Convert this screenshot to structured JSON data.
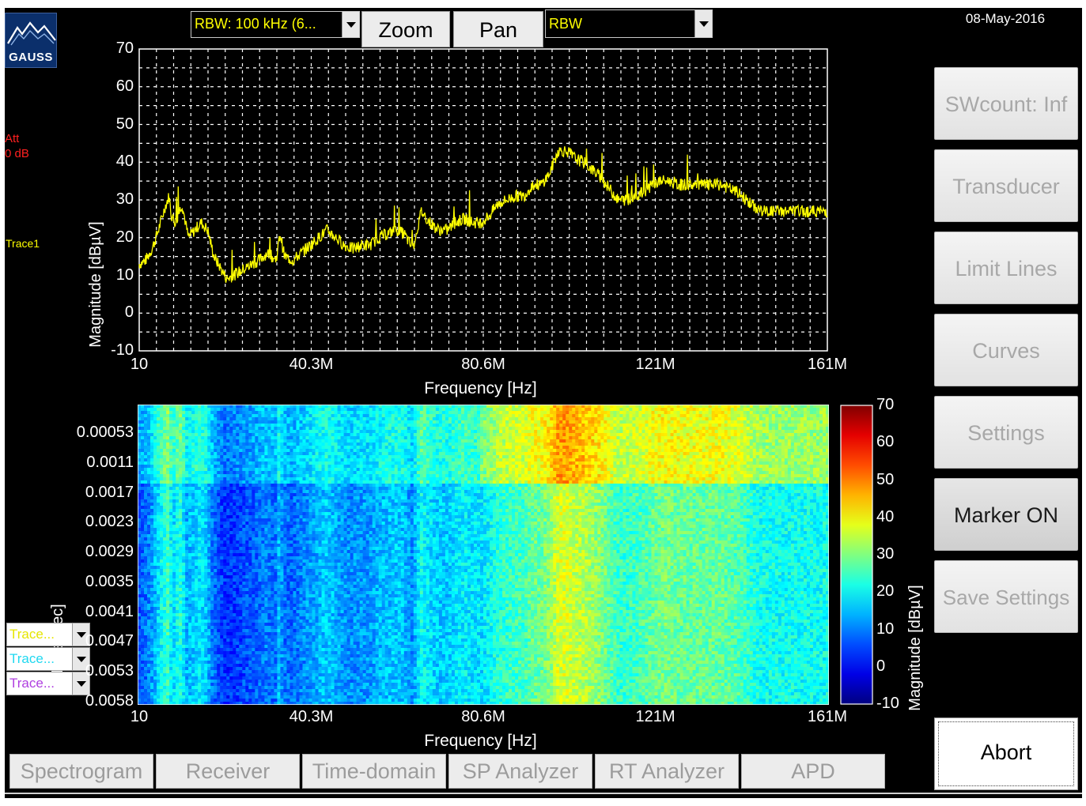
{
  "date": "08-May-2016",
  "logo": {
    "text": "GAUSS",
    "icon": "mountain-logo-icon"
  },
  "toolbar": {
    "rbw_dropdown": "RBW: 100 kHz (6...",
    "zoom_label": "Zoom",
    "pan_label": "Pan",
    "mode_dropdown": "RBW"
  },
  "status": {
    "att_label": "Att",
    "att_value": "0 dB",
    "trace_label": "Trace1"
  },
  "spectrum_plot": {
    "ylabel": "Magnitude [dBµV]",
    "xlabel": "Frequency [Hz]",
    "ytick_labels": [
      "70",
      "60",
      "50",
      "40",
      "30",
      "20",
      "10",
      "0",
      "-10"
    ],
    "xtick_labels": [
      "10",
      "40.3M",
      "80.6M",
      "121M",
      "161M"
    ],
    "trace_color": "#ffff00"
  },
  "chart_data": {
    "type": "line",
    "xlim": [
      10,
      161000000
    ],
    "ylim": [
      -10,
      70
    ],
    "grid": true,
    "series": [
      {
        "x": [
          10,
          1500000,
          3000000,
          4500000,
          6000000,
          7000000,
          7500000,
          8500000,
          10000000,
          11500000,
          13000000,
          14500000,
          16000000,
          17500000,
          19000000,
          20500000,
          22000000,
          23500000,
          25000000,
          26500000,
          28000000,
          30000000,
          32000000,
          33000000,
          34000000,
          36000000,
          38000000,
          40000000,
          42000000,
          44000000,
          46000000,
          48000000,
          50000000,
          52000000,
          54000000,
          56000000,
          58000000,
          60000000,
          62000000,
          64000000,
          65000000,
          66000000,
          68000000,
          70000000,
          72000000,
          74000000,
          76000000,
          78000000,
          80000000,
          82000000,
          84000000,
          86000000,
          88000000,
          90000000,
          92000000,
          94000000,
          96000000,
          98000000,
          100000000,
          102000000,
          104000000,
          106000000,
          108000000,
          110000000,
          112000000,
          114000000,
          116000000,
          118000000,
          120000000,
          122000000,
          124000000,
          126000000,
          128000000,
          130000000,
          132000000,
          134000000,
          136000000,
          138000000,
          140000000,
          142000000,
          144000000,
          146000000,
          148000000,
          150000000,
          152000000,
          154000000,
          156000000,
          158000000,
          161000000
        ],
        "values": [
          13,
          14,
          17,
          22,
          28,
          31,
          26,
          24,
          29,
          20,
          22,
          24,
          22,
          15,
          12,
          9,
          10,
          11,
          12,
          13,
          14,
          16,
          14,
          21,
          15,
          14,
          16,
          18,
          20,
          22,
          20,
          18,
          17,
          18,
          18,
          20,
          21,
          22,
          21,
          17,
          22,
          27,
          24,
          22,
          22,
          24,
          25,
          24,
          24,
          26,
          29,
          30,
          31,
          31,
          34,
          34,
          37,
          43,
          43,
          41,
          40,
          38,
          36,
          33,
          30,
          30,
          31,
          32,
          34,
          35,
          35,
          34,
          34,
          34,
          34,
          34,
          34,
          33,
          32,
          30,
          28,
          27,
          27,
          27,
          27,
          27,
          27,
          27,
          27
        ]
      }
    ]
  },
  "spectrogram_plot": {
    "ylabel": "Time [sec]",
    "xlabel": "Frequency [Hz]",
    "ytick_labels": [
      "0.00053",
      "0.0011",
      "0.0017",
      "0.0023",
      "0.0029",
      "0.0035",
      "0.0041",
      "0.0047",
      "0.0053",
      "0.0058"
    ],
    "xtick_labels": [
      "10",
      "40.3M",
      "80.6M",
      "121M",
      "161M"
    ],
    "colorbar_label": "Magnitude [dBµV]",
    "colorbar_ticks": [
      "70",
      "60",
      "50",
      "40",
      "30",
      "20",
      "10",
      "0",
      "-10"
    ]
  },
  "trace_selectors": [
    {
      "label": "Trace...",
      "color": "#ffff00"
    },
    {
      "label": "Trace...",
      "color": "#00e5ff"
    },
    {
      "label": "Trace...",
      "color": "#cc44ff"
    }
  ],
  "side_buttons": [
    {
      "label": "SWcount: Inf",
      "active": false
    },
    {
      "label": "Transducer",
      "active": false
    },
    {
      "label": "Limit Lines",
      "active": false
    },
    {
      "label": "Curves",
      "active": false
    },
    {
      "label": "Settings",
      "active": false
    },
    {
      "label": "Marker ON",
      "active": true
    },
    {
      "label": "Save Settings",
      "active": false
    }
  ],
  "abort_label": "Abort",
  "tabs": [
    "Spectrogram",
    "Receiver",
    "Time-domain",
    "SP Analyzer",
    "RT Analyzer",
    "APD"
  ],
  "colors": {
    "background": "#000000",
    "trace": "#ffff00",
    "status_red": "#ff2020",
    "grid": "#ffffff"
  }
}
